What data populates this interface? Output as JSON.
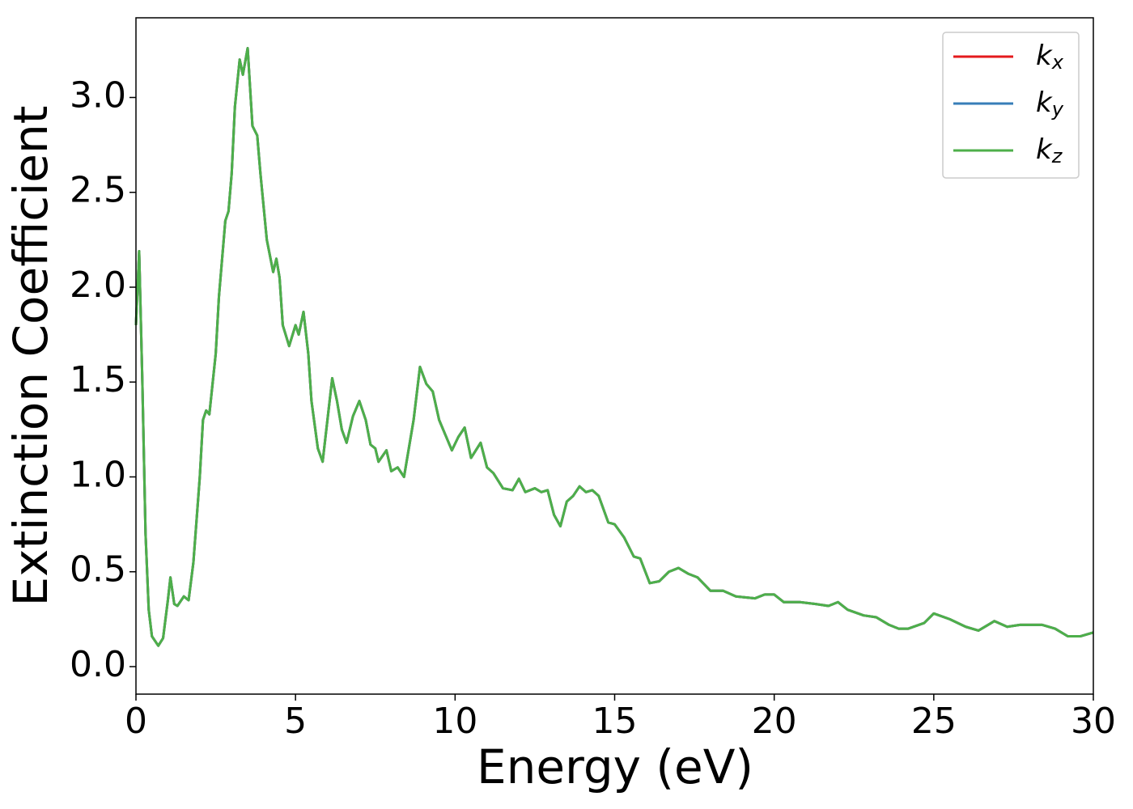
{
  "chart_data": {
    "type": "line",
    "xlabel": "Energy (eV)",
    "ylabel": "Extinction Coefficient",
    "xlim": [
      0,
      30
    ],
    "ylim": [
      -0.145,
      3.42
    ],
    "xticks": [
      0,
      5,
      10,
      15,
      20,
      25,
      30
    ],
    "yticks": [
      {
        "value": 0,
        "label": "0.0"
      },
      0.5,
      {
        "value": 1,
        "label": "1.0"
      },
      1.5,
      {
        "value": 2,
        "label": "2.0"
      },
      2.5,
      {
        "value": 3,
        "label": "3.0"
      }
    ],
    "legend": "upper right",
    "x": [
      0,
      0.1,
      0.2,
      0.3,
      0.4,
      0.5,
      0.7,
      0.85,
      1.0,
      1.08,
      1.2,
      1.3,
      1.5,
      1.65,
      1.8,
      2.0,
      2.1,
      2.2,
      2.3,
      2.5,
      2.6,
      2.8,
      2.9,
      3.0,
      3.1,
      3.25,
      3.35,
      3.5,
      3.65,
      3.8,
      3.9,
      4.1,
      4.3,
      4.4,
      4.5,
      4.6,
      4.8,
      5.0,
      5.1,
      5.25,
      5.4,
      5.5,
      5.7,
      5.85,
      6.0,
      6.15,
      6.3,
      6.45,
      6.6,
      6.8,
      7.0,
      7.2,
      7.35,
      7.5,
      7.6,
      7.85,
      8.0,
      8.2,
      8.4,
      8.7,
      8.9,
      9.1,
      9.3,
      9.5,
      9.7,
      9.9,
      10.1,
      10.3,
      10.5,
      10.8,
      11.0,
      11.2,
      11.5,
      11.8,
      12.0,
      12.2,
      12.5,
      12.7,
      12.9,
      13.1,
      13.3,
      13.5,
      13.7,
      13.9,
      14.1,
      14.3,
      14.5,
      14.8,
      15.0,
      15.3,
      15.6,
      15.8,
      16.1,
      16.4,
      16.7,
      17.0,
      17.3,
      17.6,
      18.0,
      18.4,
      18.8,
      19.4,
      19.7,
      20.0,
      20.3,
      20.8,
      21.3,
      21.7,
      22.0,
      22.3,
      22.8,
      23.2,
      23.6,
      23.9,
      24.2,
      24.7,
      25.0,
      25.5,
      26.0,
      26.4,
      26.7,
      26.9,
      27.3,
      27.7,
      28.0,
      28.4,
      28.8,
      29.2,
      29.6,
      30.0
    ],
    "series": [
      {
        "name": "kx",
        "color": "#e41a1c",
        "values": [
          1.8,
          2.19,
          1.5,
          0.7,
          0.3,
          0.16,
          0.11,
          0.15,
          0.35,
          0.47,
          0.33,
          0.32,
          0.37,
          0.35,
          0.55,
          1.0,
          1.3,
          1.35,
          1.33,
          1.65,
          1.95,
          2.35,
          2.4,
          2.6,
          2.95,
          3.2,
          3.12,
          3.26,
          2.85,
          2.8,
          2.6,
          2.25,
          2.08,
          2.15,
          2.05,
          1.8,
          1.69,
          1.8,
          1.75,
          1.87,
          1.65,
          1.4,
          1.15,
          1.08,
          1.3,
          1.52,
          1.4,
          1.25,
          1.18,
          1.32,
          1.4,
          1.3,
          1.17,
          1.15,
          1.08,
          1.14,
          1.03,
          1.05,
          1.0,
          1.3,
          1.58,
          1.49,
          1.45,
          1.3,
          1.22,
          1.14,
          1.21,
          1.26,
          1.1,
          1.18,
          1.05,
          1.02,
          0.94,
          0.93,
          0.99,
          0.92,
          0.94,
          0.92,
          0.93,
          0.8,
          0.74,
          0.87,
          0.9,
          0.95,
          0.92,
          0.93,
          0.9,
          0.76,
          0.75,
          0.68,
          0.58,
          0.57,
          0.44,
          0.45,
          0.5,
          0.52,
          0.49,
          0.47,
          0.4,
          0.4,
          0.37,
          0.36,
          0.38,
          0.38,
          0.34,
          0.34,
          0.33,
          0.32,
          0.34,
          0.3,
          0.27,
          0.26,
          0.22,
          0.2,
          0.2,
          0.23,
          0.28,
          0.25,
          0.21,
          0.19,
          0.22,
          0.24,
          0.21,
          0.22,
          0.22,
          0.22,
          0.2,
          0.16,
          0.16,
          0.18
        ]
      },
      {
        "name": "ky",
        "color": "#377eb8",
        "values": [
          1.8,
          2.19,
          1.5,
          0.7,
          0.3,
          0.16,
          0.11,
          0.15,
          0.35,
          0.47,
          0.33,
          0.32,
          0.37,
          0.35,
          0.55,
          1.0,
          1.3,
          1.35,
          1.33,
          1.65,
          1.95,
          2.35,
          2.4,
          2.6,
          2.95,
          3.2,
          3.12,
          3.26,
          2.85,
          2.8,
          2.6,
          2.25,
          2.08,
          2.15,
          2.05,
          1.8,
          1.69,
          1.8,
          1.75,
          1.87,
          1.65,
          1.4,
          1.15,
          1.08,
          1.3,
          1.52,
          1.4,
          1.25,
          1.18,
          1.32,
          1.4,
          1.3,
          1.17,
          1.15,
          1.08,
          1.14,
          1.03,
          1.05,
          1.0,
          1.3,
          1.58,
          1.49,
          1.45,
          1.3,
          1.22,
          1.14,
          1.21,
          1.26,
          1.1,
          1.18,
          1.05,
          1.02,
          0.94,
          0.93,
          0.99,
          0.92,
          0.94,
          0.92,
          0.93,
          0.8,
          0.74,
          0.87,
          0.9,
          0.95,
          0.92,
          0.93,
          0.9,
          0.76,
          0.75,
          0.68,
          0.58,
          0.57,
          0.44,
          0.45,
          0.5,
          0.52,
          0.49,
          0.47,
          0.4,
          0.4,
          0.37,
          0.36,
          0.38,
          0.38,
          0.34,
          0.34,
          0.33,
          0.32,
          0.34,
          0.3,
          0.27,
          0.26,
          0.22,
          0.2,
          0.2,
          0.23,
          0.28,
          0.25,
          0.21,
          0.19,
          0.22,
          0.24,
          0.21,
          0.22,
          0.22,
          0.22,
          0.2,
          0.16,
          0.16,
          0.18
        ]
      },
      {
        "name": "kz",
        "color": "#4daf4a",
        "values": [
          1.8,
          2.19,
          1.5,
          0.7,
          0.3,
          0.16,
          0.11,
          0.15,
          0.35,
          0.47,
          0.33,
          0.32,
          0.37,
          0.35,
          0.55,
          1.0,
          1.3,
          1.35,
          1.33,
          1.65,
          1.95,
          2.35,
          2.4,
          2.6,
          2.95,
          3.2,
          3.12,
          3.26,
          2.85,
          2.8,
          2.6,
          2.25,
          2.08,
          2.15,
          2.05,
          1.8,
          1.69,
          1.8,
          1.75,
          1.87,
          1.65,
          1.4,
          1.15,
          1.08,
          1.3,
          1.52,
          1.4,
          1.25,
          1.18,
          1.32,
          1.4,
          1.3,
          1.17,
          1.15,
          1.08,
          1.14,
          1.03,
          1.05,
          1.0,
          1.3,
          1.58,
          1.49,
          1.45,
          1.3,
          1.22,
          1.14,
          1.21,
          1.26,
          1.1,
          1.18,
          1.05,
          1.02,
          0.94,
          0.93,
          0.99,
          0.92,
          0.94,
          0.92,
          0.93,
          0.8,
          0.74,
          0.87,
          0.9,
          0.95,
          0.92,
          0.93,
          0.9,
          0.76,
          0.75,
          0.68,
          0.58,
          0.57,
          0.44,
          0.45,
          0.5,
          0.52,
          0.49,
          0.47,
          0.4,
          0.4,
          0.37,
          0.36,
          0.38,
          0.38,
          0.34,
          0.34,
          0.33,
          0.32,
          0.34,
          0.3,
          0.27,
          0.26,
          0.22,
          0.2,
          0.2,
          0.23,
          0.28,
          0.25,
          0.21,
          0.19,
          0.22,
          0.24,
          0.21,
          0.22,
          0.22,
          0.22,
          0.2,
          0.16,
          0.16,
          0.18
        ]
      }
    ]
  }
}
